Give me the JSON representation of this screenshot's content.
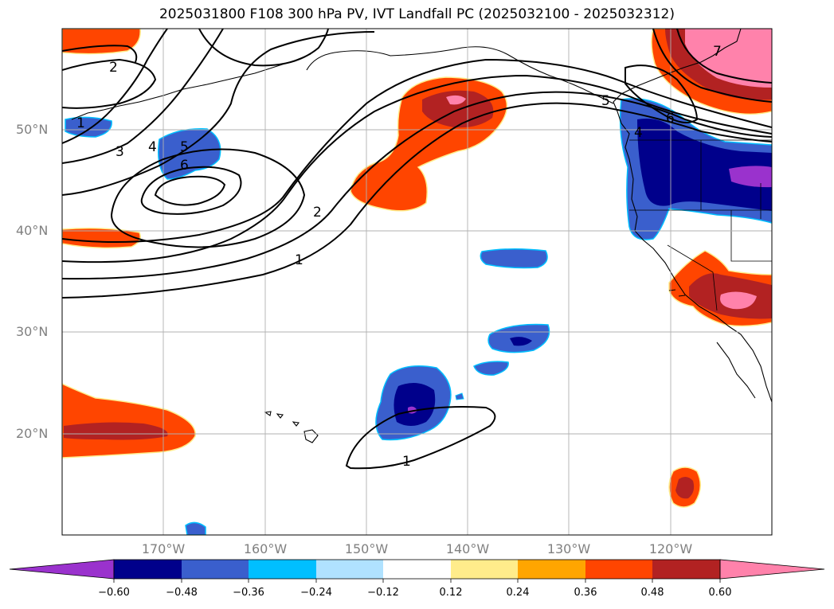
{
  "title": "2025031800 F108 300 hPa PV, IVT Landfall PC (2025032100 - 2025032312)",
  "map": {
    "lat_labels": [
      "50°N",
      "40°N",
      "30°N",
      "20°N"
    ],
    "lon_labels": [
      "170°W",
      "160°W",
      "150°W",
      "140°W",
      "130°W",
      "120°W"
    ],
    "contour_labels": [
      "1",
      "1",
      "1",
      "2",
      "2",
      "2",
      "3",
      "4",
      "4",
      "5",
      "5",
      "6",
      "6",
      "7"
    ]
  },
  "colorbar": {
    "ticks": [
      "−0.60",
      "−0.48",
      "−0.36",
      "−0.24",
      "−0.12",
      "0.12",
      "0.24",
      "0.36",
      "0.48",
      "0.60"
    ],
    "colors": [
      "#9a32cd",
      "#00008b",
      "#3a5fcd",
      "#00bfff",
      "#b0e2ff",
      "#ffffff",
      "#ffec8b",
      "#ffa500",
      "#ff4500",
      "#b22222",
      "#ff82ab"
    ]
  }
}
